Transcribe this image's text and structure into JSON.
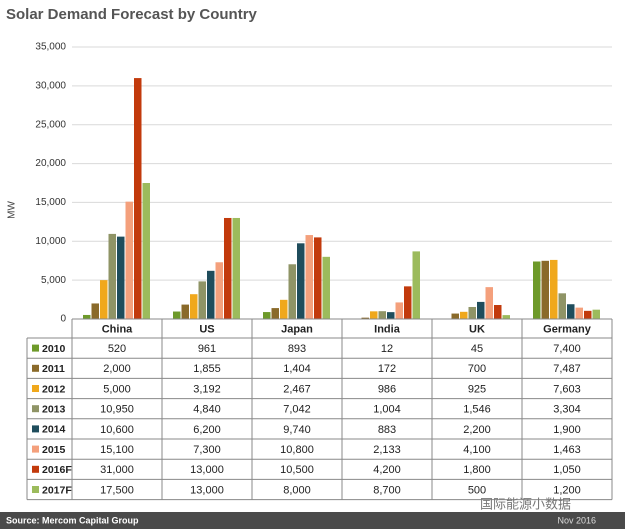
{
  "chart_data": {
    "type": "bar",
    "title": "Solar Demand Forecast by Country",
    "y_label": "MW",
    "source": "Source: Mercom Capital Group",
    "date": "Nov 2016",
    "watermark": "国际能源小数据",
    "categories": [
      "China",
      "US",
      "Japan",
      "India",
      "UK",
      "Germany"
    ],
    "ylim": [
      0,
      35000
    ],
    "yticks": [
      0,
      {
        "value": 5000,
        "label": "5,000"
      },
      {
        "value": 10000,
        "label": "10,000"
      },
      {
        "value": 15000,
        "label": "15,000"
      },
      {
        "value": 20000,
        "label": "20,000"
      },
      {
        "value": 25000,
        "label": "25,000"
      },
      {
        "value": 30000,
        "label": "30,000"
      },
      {
        "value": 35000,
        "label": "35,000"
      }
    ],
    "grid": true,
    "series": [
      {
        "name": "2010",
        "color": "#6e9a2a",
        "values": [
          520,
          961,
          893,
          12,
          45,
          7400
        ],
        "value_labels": [
          "520",
          "961",
          "893",
          "12",
          "45",
          "7,400"
        ]
      },
      {
        "name": "2011",
        "color": "#8a6a2a",
        "values": [
          2000,
          1855,
          1404,
          172,
          700,
          7487
        ],
        "value_labels": [
          "2,000",
          "1,855",
          "1,404",
          "172",
          "700",
          "7,487"
        ]
      },
      {
        "name": "2012",
        "color": "#f0a81c",
        "values": [
          5000,
          3192,
          2467,
          986,
          925,
          7603
        ],
        "value_labels": [
          "5,000",
          "3,192",
          "2,467",
          "986",
          "925",
          "7,603"
        ]
      },
      {
        "name": "2013",
        "color": "#8f9466",
        "values": [
          10950,
          4840,
          7042,
          1004,
          1546,
          3304
        ],
        "value_labels": [
          "10,950",
          "4,840",
          "7,042",
          "1,004",
          "1,546",
          "3,304"
        ]
      },
      {
        "name": "2014",
        "color": "#1f4d5c",
        "values": [
          10600,
          6200,
          9740,
          883,
          2200,
          1900
        ],
        "value_labels": [
          "10,600",
          "6,200",
          "9,740",
          "883",
          "2,200",
          "1,900"
        ]
      },
      {
        "name": "2015",
        "color": "#f4a07c",
        "values": [
          15100,
          7300,
          10800,
          2133,
          4100,
          1463
        ],
        "value_labels": [
          "15,100",
          "7,300",
          "10,800",
          "2,133",
          "4,100",
          "1,463"
        ]
      },
      {
        "name": "2016F",
        "color": "#c23a0c",
        "values": [
          31000,
          13000,
          10500,
          4200,
          1800,
          1050
        ],
        "value_labels": [
          "31,000",
          "13,000",
          "10,500",
          "4,200",
          "1,800",
          "1,050"
        ]
      },
      {
        "name": "2017F",
        "color": "#9cbb5c",
        "values": [
          17500,
          13000,
          8000,
          8700,
          500,
          1200
        ],
        "value_labels": [
          "17,500",
          "13,000",
          "8,000",
          "8,700",
          "500",
          "1,200"
        ]
      }
    ]
  }
}
